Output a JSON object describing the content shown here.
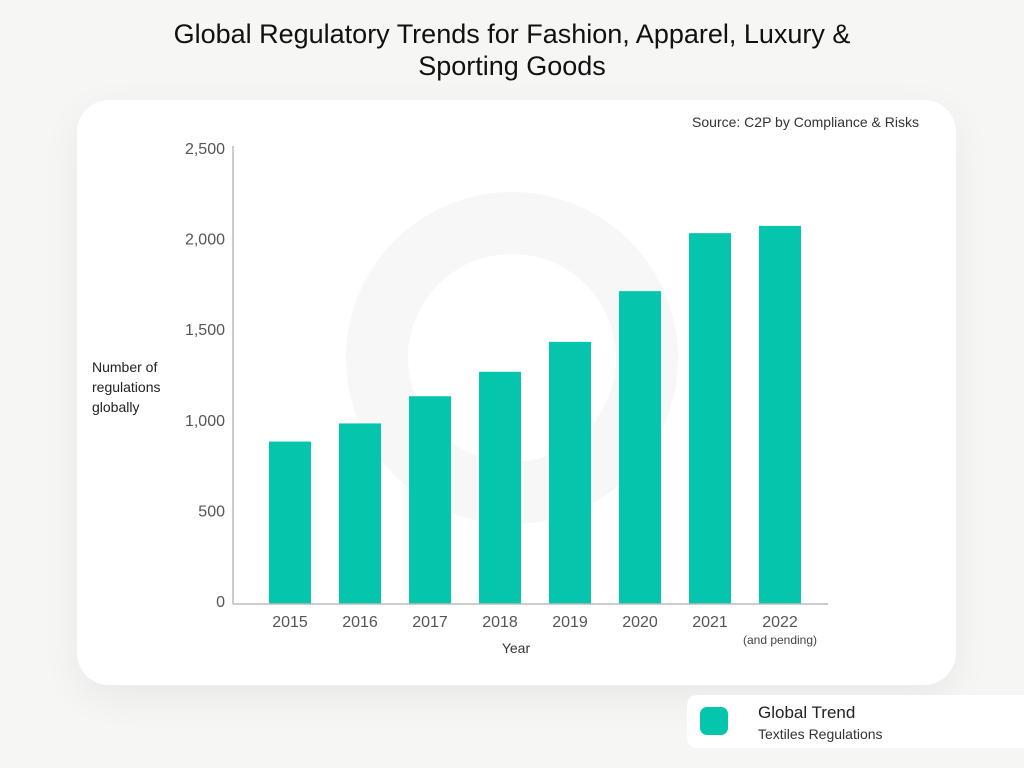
{
  "title_line1": "Global Regulatory Trends for Fashion, Apparel, Luxury &",
  "title_line2": "Sporting Goods",
  "source": "Source: C2P by Compliance & Risks",
  "legend": {
    "title": "Global Trend",
    "subtitle": "Textiles Regulations",
    "color": "#06c5ad"
  },
  "chart_data": {
    "type": "bar",
    "title": "Global Regulatory Trends for Fashion, Apparel, Luxury & Sporting Goods",
    "ylabel": "Number of regulations globally",
    "xlabel": "Year",
    "categories": [
      "2015",
      "2016",
      "2017",
      "2018",
      "2019",
      "2020",
      "2021",
      "2022"
    ],
    "category_notes": {
      "2022": "(and pending)"
    },
    "values": [
      880,
      980,
      1130,
      1265,
      1430,
      1710,
      2030,
      2070
    ],
    "ylim": [
      0,
      2500
    ],
    "yticks": [
      "0",
      "500",
      "1,000",
      "1,500",
      "2,000",
      "2,500"
    ],
    "grid": false,
    "series": [
      {
        "name": "Global Trend Textiles Regulations",
        "values": [
          880,
          980,
          1130,
          1265,
          1430,
          1710,
          2030,
          2070
        ]
      }
    ],
    "legend_position": "bottom-right",
    "bar_color": "#06c5ad"
  }
}
